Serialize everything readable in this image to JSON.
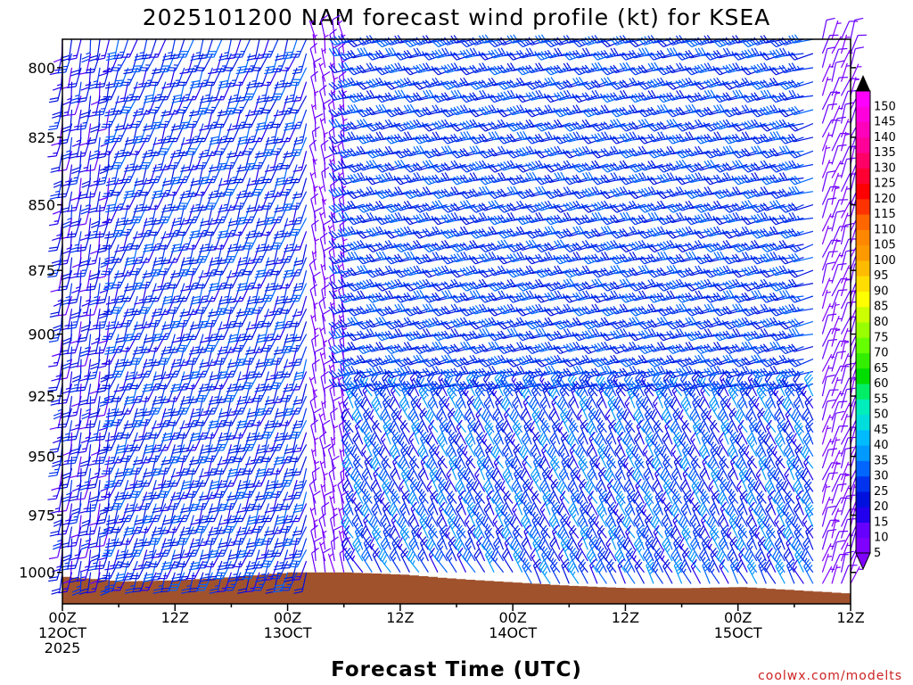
{
  "title": "2025101200 NAM forecast wind profile (kt) for KSEA",
  "credit": "coolwx.com/modelts",
  "colors": {
    "terrain": "#a0522d",
    "background": "#ffffff",
    "axis": "#000000",
    "credit": "#cc2222"
  },
  "chart_data": {
    "type": "wind-barb profile",
    "title": "2025101200 NAM forecast wind profile (kt) for KSEA",
    "xlabel": "Forecast Time (UTC)",
    "ylabel": "",
    "y_scale": "pressure (log-like, inverted)",
    "ylim": [
      1014,
      790
    ],
    "y_ticks": [
      800,
      825,
      850,
      875,
      900,
      925,
      950,
      975,
      1000
    ],
    "x_range_hours": [
      0,
      84
    ],
    "x_step_hours": 1,
    "x_ticks": [
      {
        "hour": 0,
        "line1": "00Z",
        "line2": "12OCT",
        "line3": "2025"
      },
      {
        "hour": 12,
        "line1": "12Z",
        "line2": "",
        "line3": ""
      },
      {
        "hour": 24,
        "line1": "00Z",
        "line2": "13OCT",
        "line3": ""
      },
      {
        "hour": 36,
        "line1": "12Z",
        "line2": "",
        "line3": ""
      },
      {
        "hour": 48,
        "line1": "00Z",
        "line2": "14OCT",
        "line3": ""
      },
      {
        "hour": 60,
        "line1": "12Z",
        "line2": "",
        "line3": ""
      },
      {
        "hour": 72,
        "line1": "00Z",
        "line2": "15OCT",
        "line3": ""
      },
      {
        "hour": 84,
        "line1": "12Z",
        "line2": "",
        "line3": ""
      }
    ],
    "barb_levels_hpa": [
      790,
      795,
      800,
      805,
      810,
      815,
      820,
      825,
      830,
      835,
      840,
      845,
      850,
      855,
      860,
      865,
      870,
      875,
      880,
      885,
      890,
      895,
      900,
      905,
      910,
      915,
      920,
      925,
      930,
      935,
      940,
      945,
      950,
      955,
      960,
      965,
      970,
      975,
      980,
      985,
      990,
      995,
      1000,
      1005
    ],
    "wind_regimes": [
      {
        "hours": [
          0,
          5
        ],
        "levels_hpa": [
          790,
          1005
        ],
        "direction_deg": 190,
        "speed_kt": [
          10,
          25
        ]
      },
      {
        "hours": [
          6,
          26
        ],
        "levels_hpa": [
          790,
          1005
        ],
        "direction_deg": 200,
        "speed_kt": [
          15,
          30
        ]
      },
      {
        "hours": [
          27,
          30
        ],
        "levels_hpa": [
          790,
          1005
        ],
        "direction_deg": 350,
        "speed_kt": [
          5,
          10
        ]
      },
      {
        "hours": [
          31,
          80
        ],
        "levels_hpa": [
          790,
          920
        ],
        "direction_deg": 255,
        "speed_kt": [
          20,
          30
        ]
      },
      {
        "hours": [
          31,
          80
        ],
        "levels_hpa": [
          925,
          1005
        ],
        "direction_deg": 330,
        "speed_kt": [
          15,
          35
        ]
      },
      {
        "hours": [
          81,
          84
        ],
        "levels_hpa": [
          790,
          1005
        ],
        "direction_deg": 20,
        "speed_kt": [
          5,
          10
        ]
      }
    ],
    "surface_pressure_hpa": [
      {
        "hour": 0,
        "p": 1002
      },
      {
        "hour": 3,
        "p": 1003
      },
      {
        "hour": 6,
        "p": 1004
      },
      {
        "hour": 12,
        "p": 1003.5
      },
      {
        "hour": 18,
        "p": 1002
      },
      {
        "hour": 24,
        "p": 1000
      },
      {
        "hour": 30,
        "p": 1000
      },
      {
        "hour": 36,
        "p": 1001
      },
      {
        "hour": 42,
        "p": 1003
      },
      {
        "hour": 48,
        "p": 1004.5
      },
      {
        "hour": 54,
        "p": 1006
      },
      {
        "hour": 60,
        "p": 1007
      },
      {
        "hour": 66,
        "p": 1007
      },
      {
        "hour": 72,
        "p": 1006.5
      },
      {
        "hour": 78,
        "p": 1008
      },
      {
        "hour": 84,
        "p": 1009.5
      }
    ],
    "colorbar": {
      "label_kt": [
        5,
        10,
        15,
        20,
        25,
        30,
        35,
        40,
        45,
        50,
        55,
        60,
        65,
        70,
        75,
        80,
        85,
        90,
        95,
        100,
        105,
        110,
        115,
        120,
        125,
        130,
        135,
        140,
        145,
        150
      ],
      "colors": [
        "#7f00ff",
        "#6600ff",
        "#2200ee",
        "#0011dd",
        "#0033ee",
        "#0066ff",
        "#0099ff",
        "#00bbff",
        "#00dddd",
        "#00eebb",
        "#00ee66",
        "#00dd00",
        "#33ee00",
        "#66ff00",
        "#99ff00",
        "#ccff00",
        "#ffff00",
        "#ffdd00",
        "#ffbb00",
        "#ff9900",
        "#ff8800",
        "#ff6600",
        "#ff3300",
        "#ff0000",
        "#ff0033",
        "#ff0066",
        "#ff0099",
        "#ff00bb",
        "#ff00dd",
        "#ff00ff"
      ]
    }
  }
}
